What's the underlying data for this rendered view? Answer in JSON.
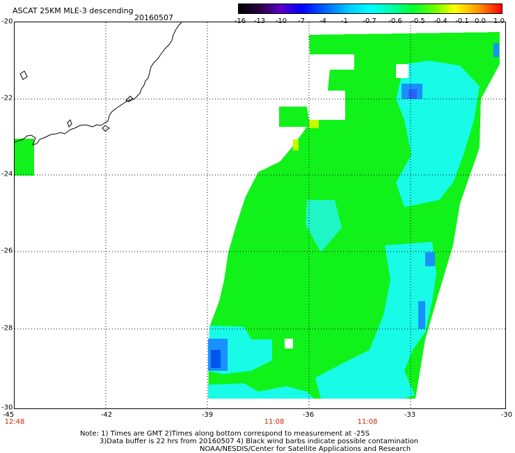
{
  "header": {
    "title": "ASCAT 25KM MLE-3 descending",
    "date": "20160507"
  },
  "colorbar": {
    "ticks": [
      "-16",
      "-13",
      "-10",
      "-7",
      "-4",
      "-1",
      "-0.7",
      "-0.6",
      "-0.5",
      "-0.4",
      "-0.1",
      "0.0",
      "1.0"
    ],
    "colors": [
      "#000000",
      "#3a0066",
      "#5a00c8",
      "#0000ff",
      "#0066ff",
      "#00ccff",
      "#00ffff",
      "#00ffcc",
      "#00ff66",
      "#00ff00",
      "#66ff00",
      "#ffff00",
      "#ff9900",
      "#ff0000"
    ]
  },
  "axes": {
    "lat_labels": [
      "-20",
      "-22",
      "-24",
      "-26",
      "-28",
      "-30"
    ],
    "lon_labels": [
      "-45",
      "-42",
      "-39",
      "-36",
      "-33",
      "-30"
    ],
    "time_labels": [
      "12:48",
      "11:08",
      "11:08"
    ]
  },
  "notes": {
    "line1": "Note: 1) Times are GMT 2)Times along bottom correspond to measurement at -25S",
    "line2": "3)Data buffer is 22 hrs from 20160507 4) Black wind barbs indicate possible contamination",
    "line3": "NOAA/NESDIS/Center for Satellite Applications and Research"
  },
  "legend_colors": {
    "swath_main": "#11f21b",
    "swath_cyan": "#18fbe6",
    "swath_blue": "#1a90ff",
    "swath_teal": "#36f7a0",
    "time_red": "#cc2200"
  }
}
